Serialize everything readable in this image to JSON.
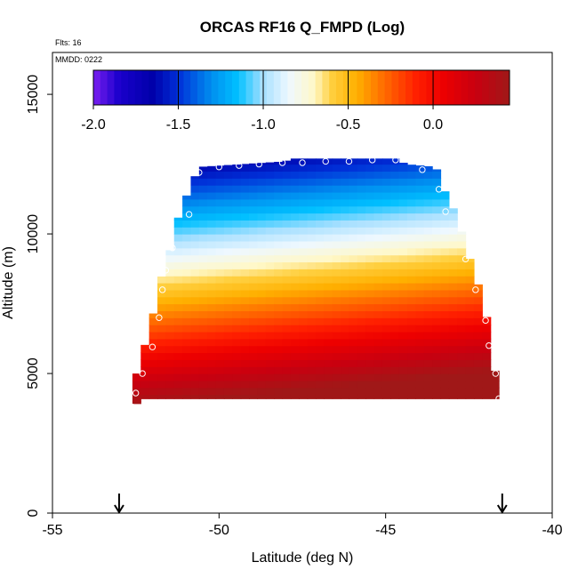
{
  "chart_data": {
    "type": "heatmap",
    "title": "ORCAS RF16 Q_FMPD (Log)",
    "flights_label": "Flts: 16",
    "date_label": "MMDD: 0222",
    "xlabel": "Latitude (deg N)",
    "ylabel": "Altitude (m)",
    "xlim": [
      -55,
      -40
    ],
    "ylim": [
      0,
      16500
    ],
    "x_ticks": [
      -55,
      -50,
      -45,
      -40
    ],
    "x_tick_labels": [
      "-55",
      "-50",
      "-45",
      "-40"
    ],
    "y_ticks": [
      0,
      5000,
      10000,
      15000
    ],
    "y_tick_labels": [
      "0",
      "5000",
      "10000",
      "15000"
    ],
    "grid": false,
    "colorbar": {
      "location": "top-left inset",
      "range": [
        -2.0,
        0.45
      ],
      "ticks": [
        -2.0,
        -1.5,
        -1.0,
        -0.5,
        0.0
      ],
      "tick_labels": [
        "-2.0",
        "-1.5",
        "-1.0",
        "-0.5",
        "0.0"
      ]
    },
    "color_scale": [
      [
        -2.0,
        "#7a1ff0"
      ],
      [
        -1.85,
        "#1a00cc"
      ],
      [
        -1.65,
        "#0000aa"
      ],
      [
        -1.5,
        "#0030d8"
      ],
      [
        -1.3,
        "#0090f0"
      ],
      [
        -1.15,
        "#00c0ff"
      ],
      [
        -1.0,
        "#a8e0ff"
      ],
      [
        -0.85,
        "#eef8ff"
      ],
      [
        -0.7,
        "#fff8c8"
      ],
      [
        -0.6,
        "#ffd040"
      ],
      [
        -0.45,
        "#ffb000"
      ],
      [
        -0.3,
        "#ff7000"
      ],
      [
        -0.1,
        "#ff2000"
      ],
      [
        0.05,
        "#ee0000"
      ],
      [
        0.25,
        "#c80010"
      ],
      [
        0.45,
        "#a01818"
      ]
    ],
    "field_model": {
      "description_units": "log10 of Q_FMPD",
      "surface_value": 0.42,
      "gradient_per_km": -0.25,
      "latitude_tilt_per_deg": -0.0286,
      "reference_latitude": -52.3,
      "reference_altitude_m": 4000
    },
    "profile_envelope": [
      {
        "lat": -52.6,
        "bottom": 3800,
        "top": 4500
      },
      {
        "lat": -52.3,
        "bottom": 4100,
        "top": 5700
      },
      {
        "lat": -52.0,
        "bottom": 4100,
        "top": 7000
      },
      {
        "lat": -51.8,
        "bottom": 4100,
        "top": 8200
      },
      {
        "lat": -51.5,
        "bottom": 4100,
        "top": 9300
      },
      {
        "lat": -51.2,
        "bottom": 4100,
        "top": 10700
      },
      {
        "lat": -50.9,
        "bottom": 4100,
        "top": 11600
      },
      {
        "lat": -50.6,
        "bottom": 4100,
        "top": 12400
      },
      {
        "lat": -48.0,
        "bottom": 4100,
        "top": 12600
      },
      {
        "lat": -47.9,
        "bottom": 4100,
        "top": 12700
      },
      {
        "lat": -44.7,
        "bottom": 4100,
        "top": 12700
      },
      {
        "lat": -44.4,
        "bottom": 4100,
        "top": 12500
      },
      {
        "lat": -43.5,
        "bottom": 4100,
        "top": 12400
      },
      {
        "lat": -43.3,
        "bottom": 4100,
        "top": 11700
      },
      {
        "lat": -43.0,
        "bottom": 4100,
        "top": 11000
      },
      {
        "lat": -42.7,
        "bottom": 4100,
        "top": 10000
      },
      {
        "lat": -42.5,
        "bottom": 4100,
        "top": 9200
      },
      {
        "lat": -42.2,
        "bottom": 4100,
        "top": 8100
      },
      {
        "lat": -42.0,
        "bottom": 4100,
        "top": 7300
      },
      {
        "lat": -41.8,
        "bottom": 4100,
        "top": 5100
      },
      {
        "lat": -41.6,
        "bottom": 4100,
        "top": 5100
      }
    ],
    "sample_points": [
      {
        "lat": -52.6,
        "alt": 3800
      },
      {
        "lat": -52.5,
        "alt": 4300
      },
      {
        "lat": -52.3,
        "alt": 5000
      },
      {
        "lat": -52.0,
        "alt": 5950
      },
      {
        "lat": -51.8,
        "alt": 7000
      },
      {
        "lat": -51.7,
        "alt": 8000
      },
      {
        "lat": -51.6,
        "alt": 8700
      },
      {
        "lat": -51.4,
        "alt": 9500
      },
      {
        "lat": -50.9,
        "alt": 10700
      },
      {
        "lat": -50.6,
        "alt": 12200
      },
      {
        "lat": -50.0,
        "alt": 12400
      },
      {
        "lat": -49.4,
        "alt": 12450
      },
      {
        "lat": -48.8,
        "alt": 12500
      },
      {
        "lat": -48.1,
        "alt": 12550
      },
      {
        "lat": -47.5,
        "alt": 12550
      },
      {
        "lat": -46.8,
        "alt": 12600
      },
      {
        "lat": -46.1,
        "alt": 12600
      },
      {
        "lat": -45.4,
        "alt": 12650
      },
      {
        "lat": -44.7,
        "alt": 12650
      },
      {
        "lat": -43.9,
        "alt": 12300
      },
      {
        "lat": -43.4,
        "alt": 11600
      },
      {
        "lat": -43.2,
        "alt": 10800
      },
      {
        "lat": -42.6,
        "alt": 9100
      },
      {
        "lat": -42.3,
        "alt": 8000
      },
      {
        "lat": -42.0,
        "alt": 6900
      },
      {
        "lat": -41.9,
        "alt": 6000
      },
      {
        "lat": -41.7,
        "alt": 5000
      },
      {
        "lat": -41.6,
        "alt": 4100
      }
    ],
    "arrow_markers": [
      {
        "lat": -53.0
      },
      {
        "lat": -41.5
      }
    ]
  }
}
